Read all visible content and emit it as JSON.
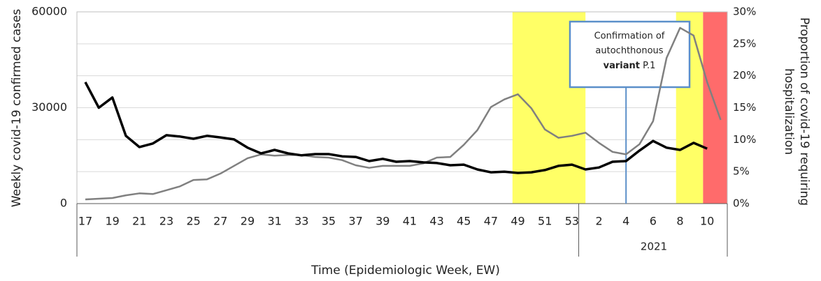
{
  "chart_data": {
    "type": "line",
    "xlabel": "Time (Epidemiologic Week, EW)",
    "ylabel": "Weekly covid-19 confirmed cases",
    "y2label": [
      "Proportion of covid-19 requiring",
      "hospitalization"
    ],
    "categories": [
      "17",
      null,
      "19",
      null,
      "21",
      null,
      "23",
      null,
      "25",
      null,
      "27",
      null,
      "29",
      null,
      "31",
      null,
      "33",
      null,
      "35",
      null,
      "37",
      null,
      "39",
      null,
      "41",
      null,
      "43",
      null,
      "45",
      null,
      "47",
      null,
      "49",
      null,
      "51",
      null,
      "53",
      null,
      "2",
      null,
      "4",
      null,
      "6",
      null,
      "8",
      null,
      "10",
      null
    ],
    "year_label": "2021",
    "series": [
      {
        "color": "#000000",
        "values": [
          38000,
          30000,
          33200,
          21200,
          17700,
          18800,
          21400,
          21000,
          20300,
          21200,
          20700,
          20100,
          17500,
          15700,
          16800,
          15700,
          15100,
          15500,
          15500,
          14800,
          14600,
          13300,
          14000,
          13100,
          13300,
          12900,
          12700,
          12000,
          12200,
          10700,
          9800,
          10000,
          9600,
          9800,
          10500,
          11800,
          12200,
          10700,
          11300,
          13100,
          13300,
          16600,
          19600,
          17500,
          16800,
          19000,
          17200,
          null
        ]
      },
      {
        "color": "#808080",
        "axis": "y2",
        "values": [
          0.65,
          0.76,
          0.87,
          1.3,
          1.6,
          1.5,
          2.1,
          2.7,
          3.7,
          3.8,
          4.7,
          5.9,
          7.1,
          7.7,
          7.5,
          7.6,
          7.6,
          7.3,
          7.2,
          6.8,
          6.0,
          5.6,
          5.9,
          5.9,
          5.9,
          6.3,
          7.2,
          7.3,
          9.2,
          11.5,
          15.1,
          16.3,
          17.1,
          14.9,
          11.6,
          10.3,
          10.6,
          11.1,
          9.5,
          8.1,
          7.7,
          9.3,
          12.9,
          22.8,
          27.5,
          26.3,
          19.0,
          13.1
        ]
      }
    ],
    "ylim": [
      0,
      60000
    ],
    "yticks": [
      0,
      30000,
      60000
    ],
    "y2lim": [
      0,
      30
    ],
    "y2ticks": [
      {
        "value": 0,
        "label": "0%"
      },
      {
        "value": 5,
        "label": "5%"
      },
      {
        "value": 10,
        "label": "10%"
      },
      {
        "value": 15,
        "label": "15%"
      },
      {
        "value": 20,
        "label": "20%"
      },
      {
        "value": 25,
        "label": "25%"
      },
      {
        "value": 30,
        "label": "30%"
      }
    ],
    "grid": true,
    "annotation": {
      "lines": [
        "Confirmation of",
        "autochthonous"
      ],
      "bold": "variant",
      "rest": "P.1"
    }
  }
}
